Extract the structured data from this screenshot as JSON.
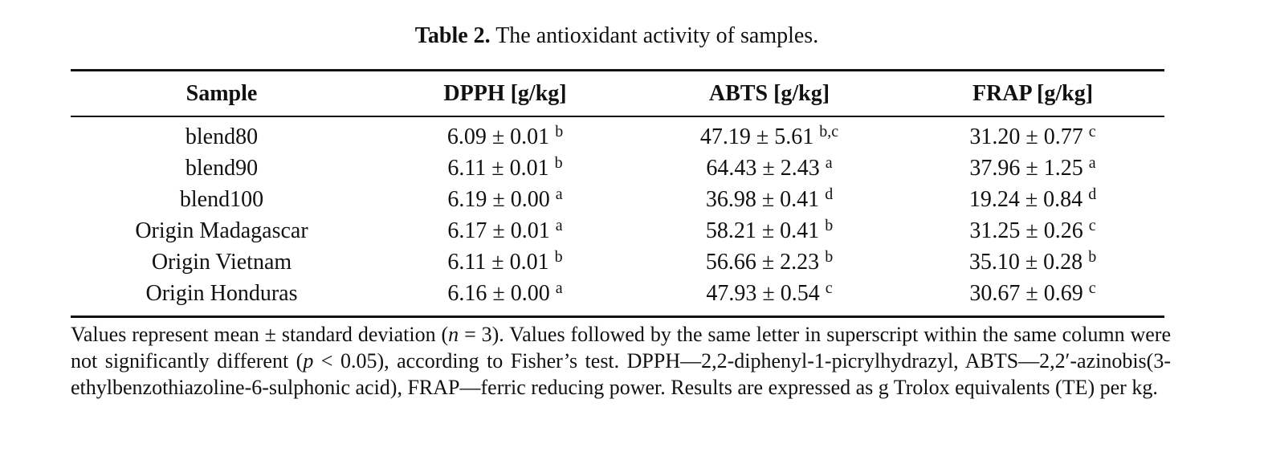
{
  "caption": {
    "label": "Table 2.",
    "text": "The antioxidant activity of samples."
  },
  "table": {
    "headers": [
      "Sample",
      "DPPH [g/kg]",
      "ABTS [g/kg]",
      "FRAP [g/kg]"
    ],
    "rows": [
      {
        "sample": "blend80",
        "dpph": {
          "value": "6.09 ± 0.01",
          "sup": "b"
        },
        "abts": {
          "value": "47.19 ± 5.61",
          "sup": "b,c"
        },
        "frap": {
          "value": "31.20 ± 0.77",
          "sup": "c"
        }
      },
      {
        "sample": "blend90",
        "dpph": {
          "value": "6.11 ± 0.01",
          "sup": "b"
        },
        "abts": {
          "value": "64.43 ± 2.43",
          "sup": "a"
        },
        "frap": {
          "value": "37.96 ± 1.25",
          "sup": "a"
        }
      },
      {
        "sample": "blend100",
        "dpph": {
          "value": "6.19 ± 0.00",
          "sup": "a"
        },
        "abts": {
          "value": "36.98 ± 0.41",
          "sup": "d"
        },
        "frap": {
          "value": "19.24 ± 0.84",
          "sup": "d"
        }
      },
      {
        "sample": "Origin Madagascar",
        "dpph": {
          "value": "6.17 ± 0.01",
          "sup": "a"
        },
        "abts": {
          "value": "58.21 ± 0.41",
          "sup": "b"
        },
        "frap": {
          "value": "31.25 ± 0.26",
          "sup": "c"
        }
      },
      {
        "sample": "Origin Vietnam",
        "dpph": {
          "value": "6.11 ± 0.01",
          "sup": "b"
        },
        "abts": {
          "value": "56.66 ± 2.23",
          "sup": "b"
        },
        "frap": {
          "value": "35.10 ± 0.28",
          "sup": "b"
        }
      },
      {
        "sample": "Origin Honduras",
        "dpph": {
          "value": "6.16 ± 0.00",
          "sup": "a"
        },
        "abts": {
          "value": "47.93 ± 0.54",
          "sup": "c"
        },
        "frap": {
          "value": "30.67 ± 0.69",
          "sup": "c"
        }
      }
    ]
  },
  "note": {
    "part1": "Values represent mean ± standard deviation (",
    "n_var": "n",
    "part2": " = 3). Values followed by the same letter in superscript within the same column were not significantly different (",
    "p_var": "p",
    "part3": " < 0.05), according to Fisher’s test. DPPH—2,2-diphenyl-1-picrylhydrazyl, ABTS—2,2′-azinobis(3-ethylbenzothiazoline-6-sulphonic acid), FRAP—ferric reducing power. Results are expressed as g Trolox equivalents (TE) per kg."
  }
}
